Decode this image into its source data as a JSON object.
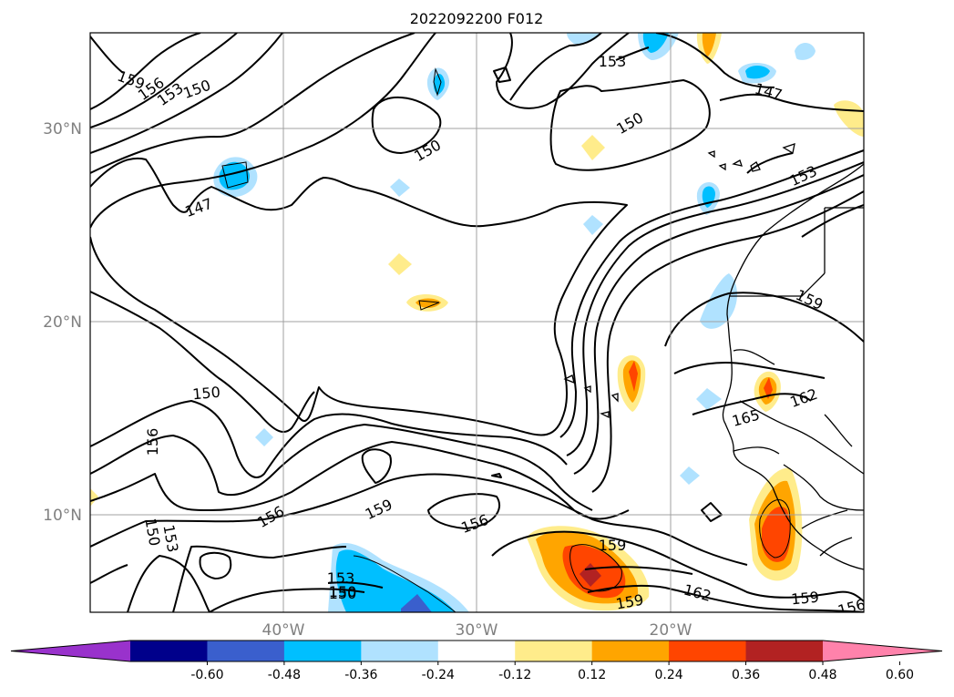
{
  "title": "2022092200 F012",
  "map": {
    "lat_labels": [
      {
        "label": "30°N",
        "lat": 30
      },
      {
        "label": "20°N",
        "lat": 20
      },
      {
        "label": "10°N",
        "lat": 10
      }
    ],
    "lon_labels": [
      {
        "label": "40°W",
        "lon": -40
      },
      {
        "label": "30°W",
        "lon": -30
      },
      {
        "label": "20°W",
        "lon": -20
      }
    ],
    "extent": {
      "lon": [
        -50,
        -10
      ],
      "lat": [
        5,
        35
      ]
    },
    "contour_labels": [
      "159",
      "156",
      "153",
      "150",
      "147",
      "150",
      "153",
      "147",
      "150",
      "153",
      "159",
      "150",
      "156",
      "150",
      "153",
      "150",
      "156",
      "159",
      "156",
      "153",
      "150",
      "159",
      "162",
      "159",
      "165",
      "162",
      "159",
      "156"
    ]
  },
  "colorbar": {
    "ticks": [
      "-0.60",
      "-0.48",
      "-0.36",
      "-0.24",
      "-0.12",
      "0.12",
      "0.24",
      "0.36",
      "0.48",
      "0.60"
    ],
    "colors": [
      "#9932cc",
      "#00008b",
      "#3a5fcd",
      "#00bfff",
      "#b0e2ff",
      "#ffffff",
      "#ffec8b",
      "#ffa500",
      "#ff4500",
      "#b22222",
      "#ff82ab"
    ]
  },
  "chart_data": {
    "type": "map",
    "title": "2022092200 F012",
    "projection": "lat-lon",
    "lon_range": [
      -50,
      -10
    ],
    "lat_range": [
      5,
      35
    ],
    "contour_levels": [
      147,
      150,
      153,
      156,
      159,
      162,
      165
    ],
    "shading_levels": [
      -0.6,
      -0.48,
      -0.36,
      -0.24,
      -0.12,
      0.12,
      0.24,
      0.36,
      0.48,
      0.6
    ],
    "grid": true,
    "colorbar": "bottom"
  }
}
